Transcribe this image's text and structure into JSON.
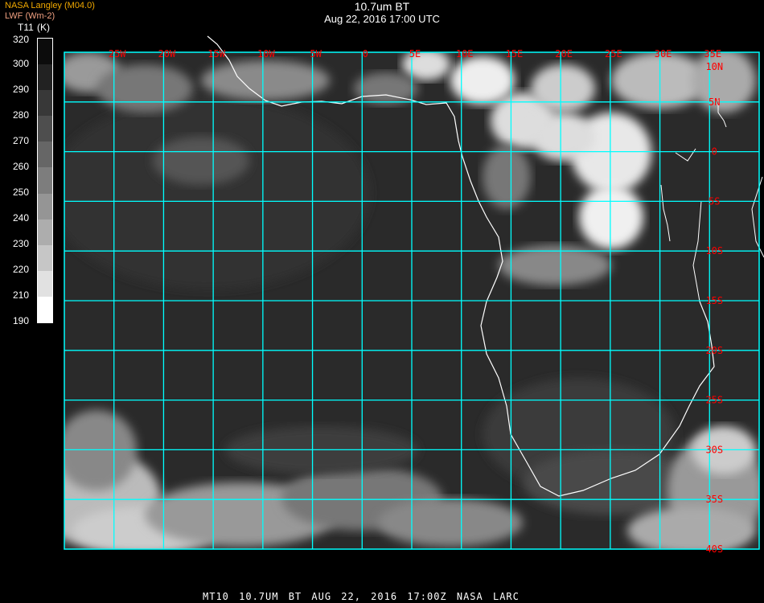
{
  "header": {
    "title": "10.7um BT",
    "subtitle": "Aug 22, 2016 17:00 UTC",
    "source": "NASA Langley (M04.0)",
    "product": "LWF (Wm-2)"
  },
  "colorbar": {
    "variable": "T11",
    "unit": "(K)",
    "labels": [
      "320",
      "300",
      "290",
      "280",
      "270",
      "260",
      "250",
      "240",
      "230",
      "220",
      "210",
      "190"
    ],
    "colors": [
      "#0c0c0c",
      "#222222",
      "#383838",
      "#4e4e4e",
      "#666666",
      "#7d7d7d",
      "#959595",
      "#adadad",
      "#c6c6c6",
      "#e1e1e1",
      "#ffffff"
    ]
  },
  "map": {
    "lon_range": [
      -30,
      40
    ],
    "lat_range": [
      -40,
      10
    ],
    "grid_color": "#00ffff",
    "label_color": "#ff0000",
    "coast_color": "#ffffff",
    "lon_labels": [
      {
        "lon": -25,
        "text": "25W"
      },
      {
        "lon": -20,
        "text": "20W"
      },
      {
        "lon": -15,
        "text": "15W"
      },
      {
        "lon": -10,
        "text": "10W"
      },
      {
        "lon": -5,
        "text": "5W"
      },
      {
        "lon": 0,
        "text": "0"
      },
      {
        "lon": 5,
        "text": "5E"
      },
      {
        "lon": 10,
        "text": "10E"
      },
      {
        "lon": 15,
        "text": "15E"
      },
      {
        "lon": 20,
        "text": "20E"
      },
      {
        "lon": 25,
        "text": "25E"
      },
      {
        "lon": 30,
        "text": "30E"
      },
      {
        "lon": 35,
        "text": "35E"
      }
    ],
    "lat_labels": [
      {
        "lat": 10,
        "text": "10N"
      },
      {
        "lat": 5,
        "text": "5N"
      },
      {
        "lat": 0,
        "text": "0"
      },
      {
        "lat": -5,
        "text": "5S"
      },
      {
        "lat": -10,
        "text": "10S"
      },
      {
        "lat": -15,
        "text": "15S"
      },
      {
        "lat": -20,
        "text": "20S"
      },
      {
        "lat": -25,
        "text": "25S"
      },
      {
        "lat": -30,
        "text": "30S"
      },
      {
        "lat": -35,
        "text": "35S"
      },
      {
        "lat": -40,
        "text": "40S"
      }
    ]
  },
  "footer": "MT10  10.7UM BT   AUG 22, 2016 17:00Z   NASA LARC"
}
